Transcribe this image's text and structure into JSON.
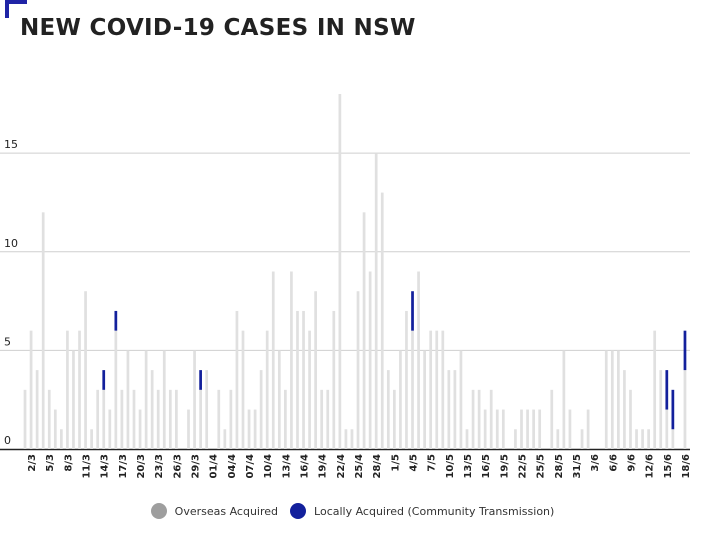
{
  "chart_data": {
    "type": "bar",
    "stacked": true,
    "title": "NEW COVID-19 CASES IN NSW",
    "ylim": [
      0,
      18
    ],
    "yticks": [
      0,
      5,
      10,
      15
    ],
    "grid": true,
    "legend_position": "bottom",
    "xtick_labels": [
      "2/3",
      "5/3",
      "8/3",
      "11/3",
      "14/3",
      "17/3",
      "20/3",
      "23/3",
      "26/3",
      "29/3",
      "01/4",
      "04/4",
      "07/4",
      "10/4",
      "13/4",
      "16/4",
      "19/4",
      "22/4",
      "25/4",
      "28/4",
      "1/5",
      "4/5",
      "7/5",
      "10/5",
      "13/5",
      "16/5",
      "19/5",
      "22/5",
      "25/5",
      "28/5",
      "31/5",
      "3/6",
      "6/6",
      "9/6",
      "12/6",
      "15/6",
      "18/6"
    ],
    "categories": [
      "1/3",
      "2/3",
      "3/3",
      "4/3",
      "5/3",
      "6/3",
      "7/3",
      "8/3",
      "9/3",
      "10/3",
      "11/3",
      "12/3",
      "13/3",
      "14/3",
      "15/3",
      "16/3",
      "17/3",
      "18/3",
      "19/3",
      "20/3",
      "21/3",
      "22/3",
      "23/3",
      "24/3",
      "25/3",
      "26/3",
      "27/3",
      "28/3",
      "29/3",
      "30/3",
      "31/3",
      "1/4",
      "2/4",
      "3/4",
      "4/4",
      "5/4",
      "6/4",
      "7/4",
      "8/4",
      "9/4",
      "10/4",
      "11/4",
      "12/4",
      "13/4",
      "14/4",
      "15/4",
      "16/4",
      "17/4",
      "18/4",
      "19/4",
      "20/4",
      "21/4",
      "22/4",
      "23/4",
      "24/4",
      "25/4",
      "26/4",
      "27/4",
      "28/4",
      "29/4",
      "30/4",
      "1/5",
      "2/5",
      "3/5",
      "4/5",
      "5/5",
      "6/5",
      "7/5",
      "8/5",
      "9/5",
      "10/5",
      "11/5",
      "12/5",
      "13/5",
      "14/5",
      "15/5",
      "16/5",
      "17/5",
      "18/5",
      "19/5",
      "20/5",
      "21/5",
      "22/5",
      "23/5",
      "24/5",
      "25/5",
      "26/5",
      "27/5",
      "28/5",
      "29/5",
      "30/5",
      "31/5",
      "1/6",
      "2/6",
      "3/6",
      "4/6",
      "5/6",
      "6/6",
      "7/6",
      "8/6",
      "9/6",
      "10/6",
      "11/6",
      "12/6",
      "13/6",
      "14/6",
      "15/6",
      "16/6",
      "17/6",
      "18/6"
    ],
    "series": [
      {
        "name": "Overseas Acquired",
        "color": "#e0e0e0",
        "values": [
          3,
          6,
          4,
          12,
          3,
          2,
          1,
          6,
          5,
          6,
          8,
          1,
          3,
          3,
          2,
          6,
          3,
          5,
          3,
          2,
          5,
          4,
          3,
          5,
          3,
          3,
          0,
          2,
          5,
          3,
          4,
          0,
          3,
          1,
          3,
          7,
          6,
          2,
          2,
          4,
          6,
          9,
          5,
          3,
          9,
          7,
          7,
          6,
          8,
          3,
          3,
          7,
          18,
          1,
          1,
          8,
          12,
          9,
          15,
          13,
          4,
          3,
          5,
          7,
          6,
          9,
          5,
          6,
          6,
          6,
          4,
          4,
          5,
          1,
          3,
          3,
          2,
          3,
          2,
          2,
          0,
          1,
          2,
          2,
          2,
          2,
          0,
          3,
          1,
          5,
          2,
          0,
          1,
          2,
          0,
          0,
          5,
          5,
          5,
          4,
          3,
          1,
          1,
          1,
          6,
          4,
          2,
          1,
          0,
          4
        ]
      },
      {
        "name": "Locally Acquired (Community Transmission)",
        "color": "#13209c",
        "values": [
          0,
          0,
          0,
          0,
          0,
          0,
          0,
          0,
          0,
          0,
          0,
          0,
          0,
          1,
          0,
          1,
          0,
          0,
          0,
          0,
          0,
          0,
          0,
          0,
          0,
          0,
          0,
          0,
          0,
          1,
          0,
          0,
          0,
          0,
          0,
          0,
          0,
          0,
          0,
          0,
          0,
          0,
          0,
          0,
          0,
          0,
          0,
          0,
          0,
          0,
          0,
          0,
          0,
          0,
          0,
          0,
          0,
          0,
          0,
          0,
          0,
          0,
          0,
          0,
          2,
          0,
          0,
          0,
          0,
          0,
          0,
          0,
          0,
          0,
          0,
          0,
          0,
          0,
          0,
          0,
          0,
          0,
          0,
          0,
          0,
          0,
          0,
          0,
          0,
          0,
          0,
          0,
          0,
          0,
          0,
          0,
          0,
          0,
          0,
          0,
          0,
          0,
          0,
          0,
          0,
          0,
          2,
          2,
          0,
          2
        ]
      }
    ]
  }
}
